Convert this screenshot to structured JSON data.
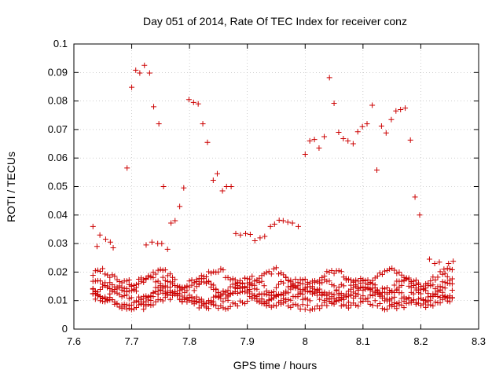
{
  "chart_data": {
    "type": "scatter",
    "title": "Day 051 of 2014, Rate Of TEC Index for receiver conz",
    "xlabel": "GPS time / hours",
    "ylabel": "ROTI / TECUs",
    "xlim": [
      7.6,
      8.3
    ],
    "ylim": [
      0,
      0.1
    ],
    "xticks": [
      "7.6",
      "7.7",
      "7.8",
      "7.9",
      "8",
      "8.1",
      "8.2",
      "8.3"
    ],
    "yticks": [
      "0",
      "0.01",
      "0.02",
      "0.03",
      "0.04",
      "0.05",
      "0.06",
      "0.07",
      "0.08",
      "0.09",
      "0.1"
    ],
    "grid": true,
    "marker": "plus",
    "color": "#cc0000",
    "highlighted_points": [
      {
        "x": 7.633,
        "y": 0.036
      },
      {
        "x": 7.64,
        "y": 0.029
      },
      {
        "x": 7.645,
        "y": 0.033
      },
      {
        "x": 7.655,
        "y": 0.0315
      },
      {
        "x": 7.663,
        "y": 0.0305
      },
      {
        "x": 7.668,
        "y": 0.0285
      },
      {
        "x": 7.692,
        "y": 0.0565
      },
      {
        "x": 7.7,
        "y": 0.0848
      },
      {
        "x": 7.707,
        "y": 0.0908
      },
      {
        "x": 7.714,
        "y": 0.0898
      },
      {
        "x": 7.722,
        "y": 0.0925
      },
      {
        "x": 7.731,
        "y": 0.0898
      },
      {
        "x": 7.738,
        "y": 0.078
      },
      {
        "x": 7.747,
        "y": 0.072
      },
      {
        "x": 7.755,
        "y": 0.05
      },
      {
        "x": 7.725,
        "y": 0.0295
      },
      {
        "x": 7.735,
        "y": 0.0305
      },
      {
        "x": 7.745,
        "y": 0.03
      },
      {
        "x": 7.752,
        "y": 0.03
      },
      {
        "x": 7.762,
        "y": 0.028
      },
      {
        "x": 7.768,
        "y": 0.0372
      },
      {
        "x": 7.775,
        "y": 0.038
      },
      {
        "x": 7.783,
        "y": 0.043
      },
      {
        "x": 7.79,
        "y": 0.0495
      },
      {
        "x": 7.799,
        "y": 0.0805
      },
      {
        "x": 7.807,
        "y": 0.0795
      },
      {
        "x": 7.815,
        "y": 0.079
      },
      {
        "x": 7.823,
        "y": 0.072
      },
      {
        "x": 7.831,
        "y": 0.0655
      },
      {
        "x": 7.841,
        "y": 0.0522
      },
      {
        "x": 7.848,
        "y": 0.0545
      },
      {
        "x": 7.857,
        "y": 0.0485
      },
      {
        "x": 7.864,
        "y": 0.05
      },
      {
        "x": 7.872,
        "y": 0.05
      },
      {
        "x": 7.88,
        "y": 0.0335
      },
      {
        "x": 7.888,
        "y": 0.033
      },
      {
        "x": 7.897,
        "y": 0.0335
      },
      {
        "x": 7.905,
        "y": 0.0332
      },
      {
        "x": 7.913,
        "y": 0.031
      },
      {
        "x": 7.922,
        "y": 0.032
      },
      {
        "x": 7.93,
        "y": 0.0325
      },
      {
        "x": 7.94,
        "y": 0.036
      },
      {
        "x": 7.947,
        "y": 0.0368
      },
      {
        "x": 7.955,
        "y": 0.0382
      },
      {
        "x": 7.962,
        "y": 0.038
      },
      {
        "x": 7.97,
        "y": 0.0375
      },
      {
        "x": 7.978,
        "y": 0.0372
      },
      {
        "x": 7.988,
        "y": 0.036
      },
      {
        "x": 8.0,
        "y": 0.0613
      },
      {
        "x": 8.008,
        "y": 0.066
      },
      {
        "x": 8.016,
        "y": 0.0665
      },
      {
        "x": 8.024,
        "y": 0.0635
      },
      {
        "x": 8.033,
        "y": 0.0675
      },
      {
        "x": 8.042,
        "y": 0.0882
      },
      {
        "x": 8.05,
        "y": 0.0792
      },
      {
        "x": 8.058,
        "y": 0.069
      },
      {
        "x": 8.066,
        "y": 0.0668
      },
      {
        "x": 8.074,
        "y": 0.066
      },
      {
        "x": 8.083,
        "y": 0.065
      },
      {
        "x": 8.091,
        "y": 0.0692
      },
      {
        "x": 8.099,
        "y": 0.071
      },
      {
        "x": 8.107,
        "y": 0.072
      },
      {
        "x": 8.116,
        "y": 0.0785
      },
      {
        "x": 8.124,
        "y": 0.0558
      },
      {
        "x": 8.132,
        "y": 0.0712
      },
      {
        "x": 8.14,
        "y": 0.0688
      },
      {
        "x": 8.149,
        "y": 0.0735
      },
      {
        "x": 8.157,
        "y": 0.0765
      },
      {
        "x": 8.165,
        "y": 0.077
      },
      {
        "x": 8.173,
        "y": 0.0775
      },
      {
        "x": 8.182,
        "y": 0.0663
      },
      {
        "x": 8.19,
        "y": 0.0463
      },
      {
        "x": 8.198,
        "y": 0.04
      },
      {
        "x": 8.215,
        "y": 0.0245
      },
      {
        "x": 8.224,
        "y": 0.023
      },
      {
        "x": 8.232,
        "y": 0.0235
      },
      {
        "x": 8.24,
        "y": 0.021
      },
      {
        "x": 8.248,
        "y": 0.023
      },
      {
        "x": 8.256,
        "y": 0.0238
      }
    ],
    "dense_band": {
      "x_start": 7.633,
      "x_end": 8.258,
      "sample_step_hours": 0.00417,
      "traces": [
        {
          "base": 0.0125,
          "amplitude": 0.003,
          "period_hours": 0.11,
          "phase": 0.0
        },
        {
          "base": 0.015,
          "amplitude": 0.0028,
          "period_hours": 0.09,
          "phase": 1.3
        },
        {
          "base": 0.011,
          "amplitude": 0.0025,
          "period_hours": 0.13,
          "phase": 2.1
        },
        {
          "base": 0.0175,
          "amplitude": 0.003,
          "period_hours": 0.1,
          "phase": 0.7
        },
        {
          "base": 0.0138,
          "amplitude": 0.0035,
          "period_hours": 0.07,
          "phase": 3.0
        },
        {
          "base": 0.0095,
          "amplitude": 0.002,
          "period_hours": 0.15,
          "phase": 1.8
        }
      ]
    }
  }
}
